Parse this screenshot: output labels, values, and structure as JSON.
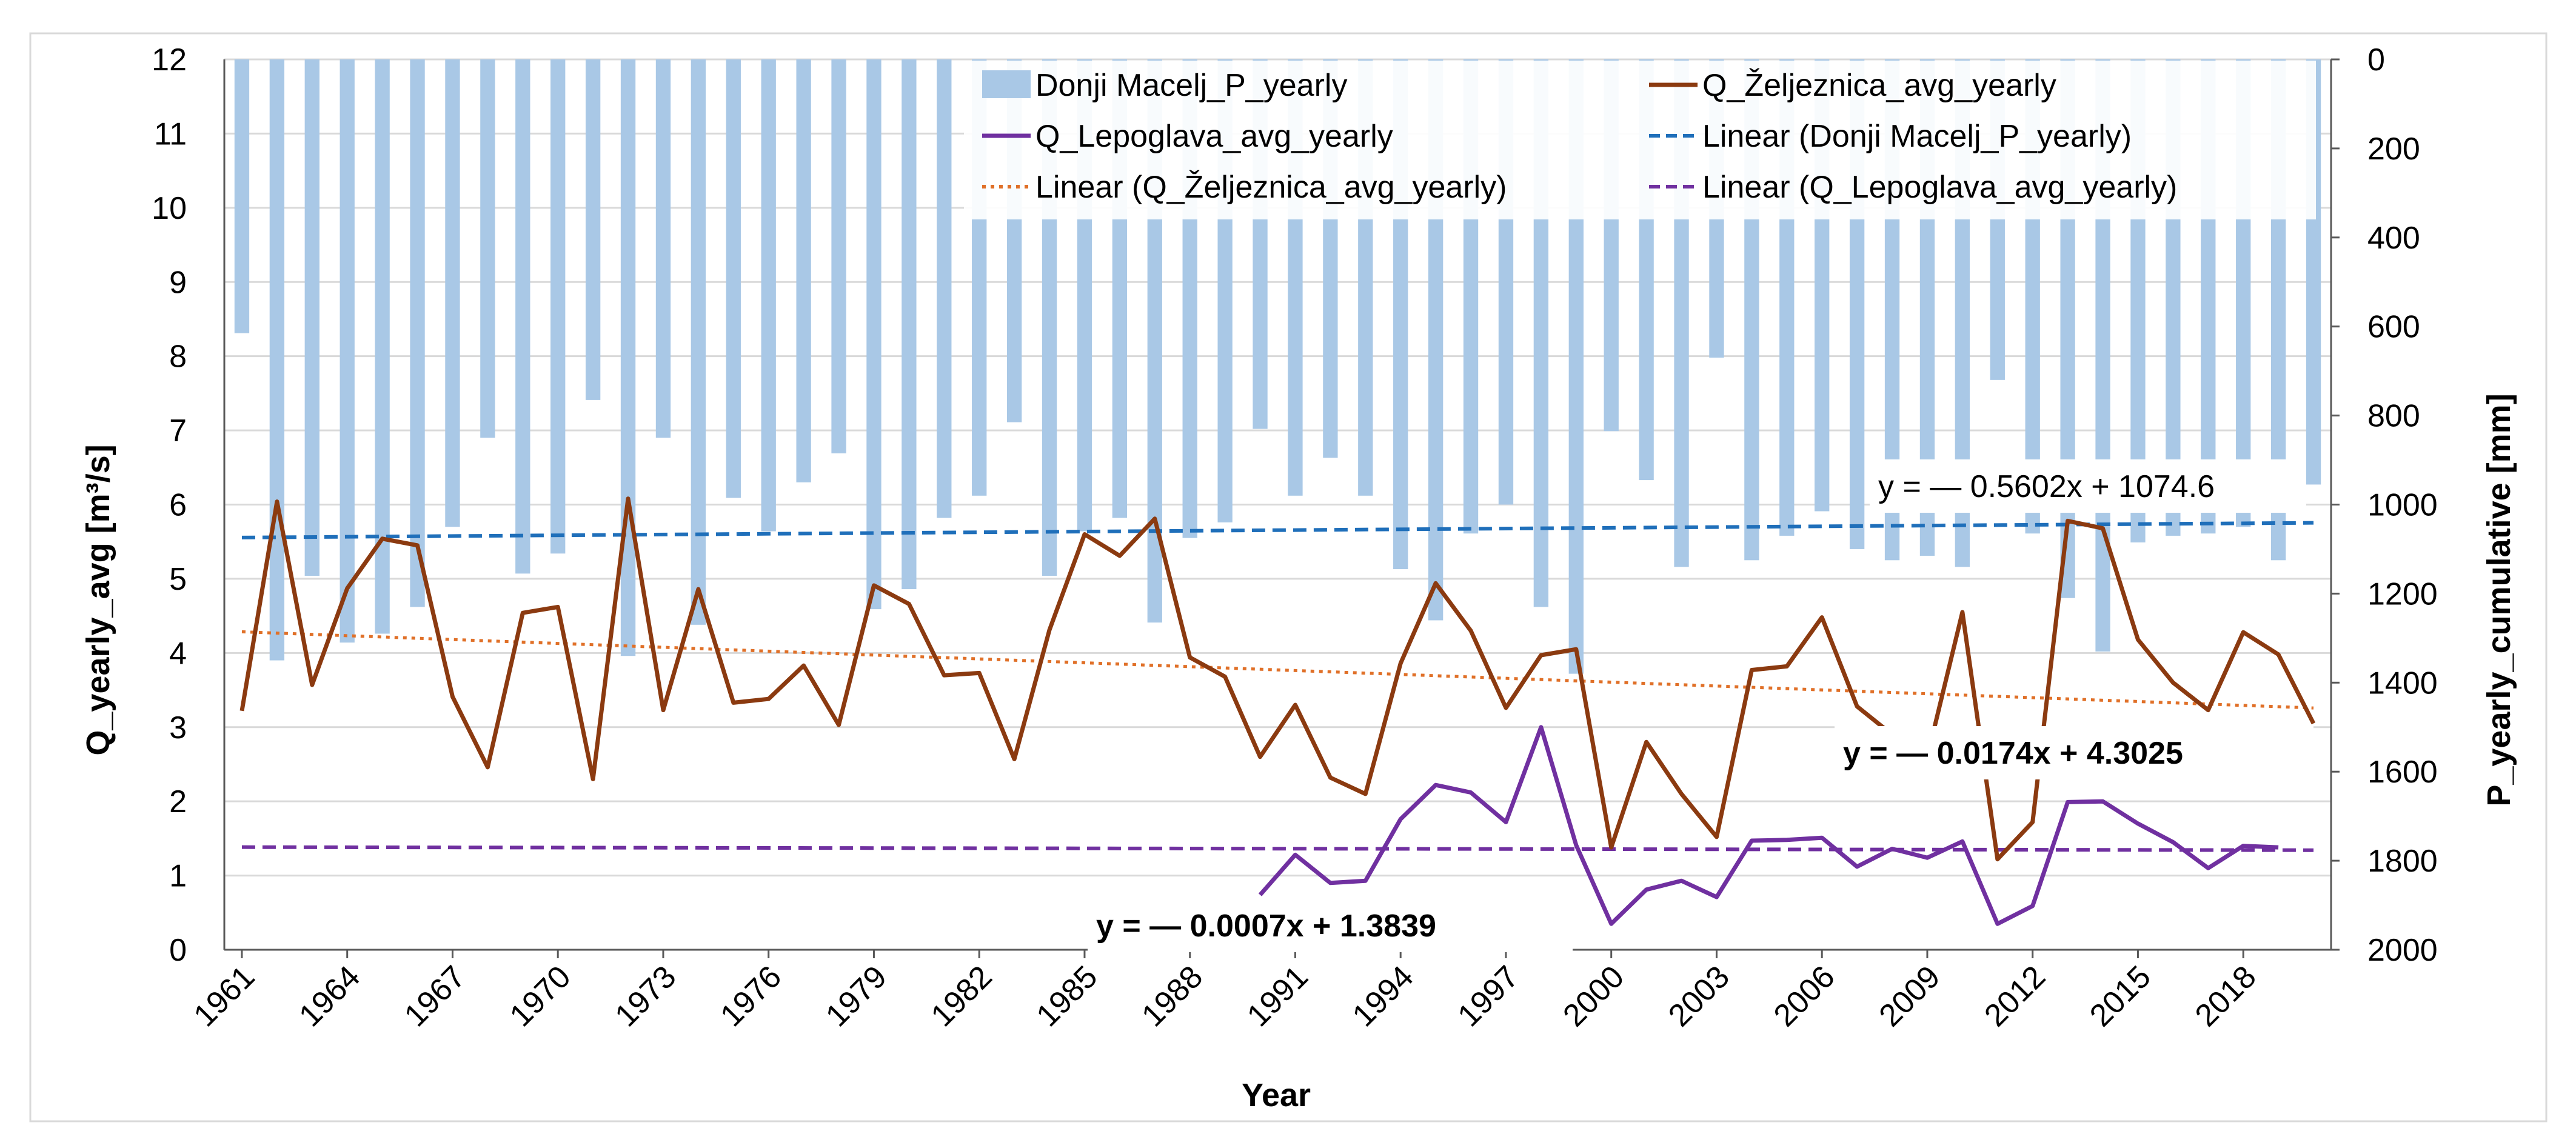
{
  "chart_data": {
    "type": "combo",
    "xlabel": "Year",
    "ylabel_left": "Q_yearly_avg [m³/s]",
    "ylabel_right": "P_yearly_cumulative [mm]",
    "ylim_left": [
      0,
      12
    ],
    "ylim_right": [
      0,
      2000
    ],
    "right_axis_inverted": true,
    "x_range": [
      1961,
      2020
    ],
    "x_tick_labels": [
      "1961",
      "1964",
      "1967",
      "1970",
      "1973",
      "1976",
      "1979",
      "1982",
      "1985",
      "1988",
      "1991",
      "1994",
      "1997",
      "2000",
      "2003",
      "2006",
      "2009",
      "2012",
      "2015",
      "2018"
    ],
    "y_left_ticks": [
      "0",
      "1",
      "2",
      "3",
      "4",
      "5",
      "6",
      "7",
      "8",
      "9",
      "10",
      "11",
      "12"
    ],
    "y_right_ticks": [
      "0",
      "200",
      "400",
      "600",
      "800",
      "1000",
      "1200",
      "1400",
      "1600",
      "1800",
      "2000"
    ],
    "grid": "horizontal",
    "legend_position": "top-right",
    "colors": {
      "precip": "#a9c8e6",
      "zeljeznica": "#8b3a10",
      "lepoglava": "#7030a0",
      "trend_precip": "#1f6fba",
      "trend_zeljeznica": "#e07028",
      "trend_lepoglava": "#7030a0",
      "grid": "#d9d9d9",
      "axis": "#595959"
    },
    "legend": [
      {
        "label": "Donji Macelj_P_yearly",
        "kind": "bar",
        "color": "#a9c8e6"
      },
      {
        "label": "Q_Željeznica_avg_yearly",
        "kind": "line",
        "color": "#8b3a10"
      },
      {
        "label": "Q_Lepoglava_avg_yearly",
        "kind": "line",
        "color": "#7030a0"
      },
      {
        "label": "Linear (Donji Macelj_P_yearly)",
        "kind": "dashed",
        "color": "#1f6fba"
      },
      {
        "label": "Linear (Q_Željeznica_avg_yearly)",
        "kind": "dotted",
        "color": "#e07028"
      },
      {
        "label": "Linear (Q_Lepoglava_avg_yearly)",
        "kind": "dashed",
        "color": "#7030a0"
      }
    ],
    "series": [
      {
        "name": "Donji Macelj_P_yearly",
        "axis": "right",
        "type": "bar",
        "x": [
          1961,
          1962,
          1963,
          1964,
          1965,
          1966,
          1967,
          1968,
          1969,
          1970,
          1971,
          1972,
          1973,
          1974,
          1975,
          1976,
          1977,
          1978,
          1979,
          1980,
          1981,
          1982,
          1983,
          1984,
          1985,
          1986,
          1987,
          1988,
          1989,
          1990,
          1991,
          1992,
          1993,
          1994,
          1995,
          1996,
          1997,
          1998,
          1999,
          2000,
          2001,
          2002,
          2003,
          2004,
          2005,
          2006,
          2007,
          2008,
          2009,
          2010,
          2011,
          2012,
          2013,
          2014,
          2015,
          2016,
          2017,
          2018,
          2019,
          2020
        ],
        "values": [
          615,
          1350,
          1160,
          1310,
          1290,
          1230,
          1050,
          850,
          1155,
          1110,
          765,
          1340,
          850,
          1270,
          985,
          1060,
          950,
          885,
          1235,
          1190,
          1030,
          980,
          815,
          1160,
          1060,
          1030,
          1265,
          1075,
          1040,
          830,
          980,
          895,
          980,
          1145,
          1260,
          1065,
          1000,
          1230,
          1380,
          835,
          945,
          1140,
          670,
          1125,
          1070,
          1015,
          1100,
          1125,
          1115,
          1140,
          720,
          1065,
          1210,
          1330,
          1085,
          1070,
          1065,
          1050,
          1125,
          955
        ]
      },
      {
        "name": "Q_Željeznica_avg_yearly",
        "axis": "left",
        "type": "line",
        "x": [
          1961,
          1962,
          1963,
          1964,
          1965,
          1966,
          1967,
          1968,
          1969,
          1970,
          1971,
          1972,
          1973,
          1974,
          1975,
          1976,
          1977,
          1978,
          1979,
          1980,
          1981,
          1982,
          1983,
          1984,
          1985,
          1986,
          1987,
          1988,
          1989,
          1990,
          1991,
          1992,
          1993,
          1994,
          1995,
          1996,
          1997,
          1998,
          1999,
          2000,
          2001,
          2002,
          2003,
          2004,
          2005,
          2006,
          2007,
          2008,
          2009,
          2010,
          2011,
          2012,
          2013,
          2014,
          2015,
          2016,
          2017,
          2018,
          2019,
          2020
        ],
        "values": [
          3.22,
          6.04,
          3.57,
          4.87,
          5.54,
          5.45,
          3.41,
          2.46,
          4.54,
          4.62,
          2.3,
          6.08,
          3.23,
          4.86,
          3.33,
          3.38,
          3.83,
          3.03,
          4.91,
          4.66,
          3.7,
          3.73,
          2.57,
          4.31,
          5.6,
          5.31,
          5.81,
          3.94,
          3.68,
          2.6,
          3.3,
          2.32,
          2.1,
          3.86,
          4.94,
          4.3,
          3.26,
          3.97,
          4.05,
          1.38,
          2.8,
          2.1,
          1.52,
          3.77,
          3.82,
          4.48,
          3.28,
          2.9,
          2.6,
          4.55,
          1.22,
          1.72,
          5.78,
          5.68,
          4.18,
          3.6,
          3.23,
          4.28,
          3.98,
          3.05
        ]
      },
      {
        "name": "Q_Lepoglava_avg_yearly",
        "axis": "left",
        "type": "line",
        "x": [
          1990,
          1991,
          1992,
          1993,
          1994,
          1995,
          1996,
          1997,
          1998,
          1999,
          2000,
          2001,
          2002,
          2003,
          2004,
          2005,
          2006,
          2007,
          2008,
          2009,
          2010,
          2011,
          2012,
          2013,
          2014,
          2015,
          2016,
          2017,
          2018,
          2019
        ],
        "values": [
          0.74,
          1.28,
          0.9,
          0.93,
          1.76,
          2.22,
          2.12,
          1.72,
          3.0,
          1.41,
          0.35,
          0.81,
          0.93,
          0.71,
          1.47,
          1.48,
          1.51,
          1.12,
          1.36,
          1.24,
          1.46,
          0.35,
          0.59,
          1.99,
          2.0,
          1.7,
          1.45,
          1.1,
          1.4,
          1.38
        ]
      }
    ],
    "trendlines": [
      {
        "name": "Linear (Donji Macelj_P_yearly)",
        "axis": "right",
        "style": "dashed",
        "slope": -0.5602,
        "intercept": 1074.6,
        "equation": "y = — 0.5602x + 1074.6"
      },
      {
        "name": "Linear (Q_Željeznica_avg_yearly)",
        "axis": "left",
        "style": "dotted",
        "slope": -0.0174,
        "intercept": 4.3025,
        "equation": "y = — 0.0174x + 4.3025"
      },
      {
        "name": "Linear (Q_Lepoglava_avg_yearly)",
        "axis": "left",
        "style": "dashed",
        "slope": -0.0007,
        "intercept": 1.3839,
        "equation": "y = — 0.0007x + 1.3839"
      }
    ]
  }
}
